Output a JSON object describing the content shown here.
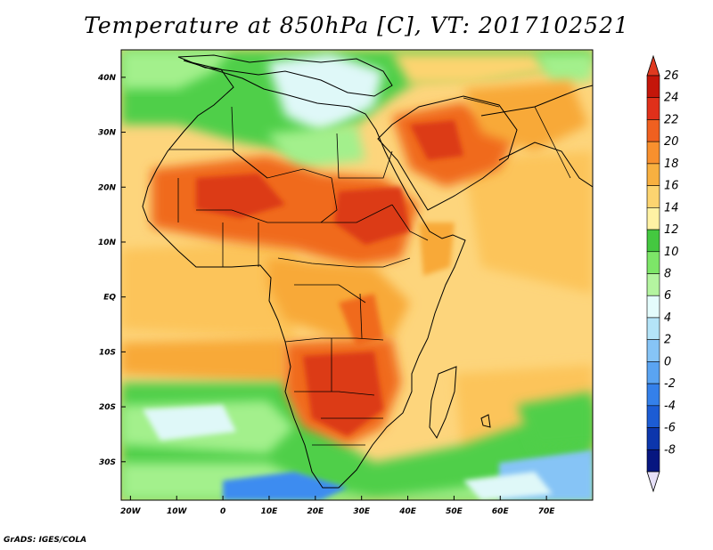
{
  "title": "Temperature at 850hPa [C], VT: 2017102521",
  "credit": "GrADS: IGES/COLA",
  "map": {
    "lon_range": [
      -22,
      80
    ],
    "lat_range": [
      -37,
      45
    ],
    "lon_ticks": [
      {
        "value": -20,
        "label": "20W"
      },
      {
        "value": -10,
        "label": "10W"
      },
      {
        "value": 0,
        "label": "0"
      },
      {
        "value": 10,
        "label": "10E"
      },
      {
        "value": 20,
        "label": "20E"
      },
      {
        "value": 30,
        "label": "30E"
      },
      {
        "value": 40,
        "label": "40E"
      },
      {
        "value": 50,
        "label": "50E"
      },
      {
        "value": 60,
        "label": "60E"
      },
      {
        "value": 70,
        "label": "70E"
      }
    ],
    "lat_ticks": [
      {
        "value": 40,
        "label": "40N"
      },
      {
        "value": 30,
        "label": "30N"
      },
      {
        "value": 20,
        "label": "20N"
      },
      {
        "value": 10,
        "label": "10N"
      },
      {
        "value": 0,
        "label": "EQ"
      },
      {
        "value": -10,
        "label": "10S"
      },
      {
        "value": -20,
        "label": "20S"
      },
      {
        "value": -30,
        "label": "30S"
      }
    ],
    "colors": {
      "ocean_mid": "#fdd57c",
      "ocean_warm": "#f8a937",
      "land_hot": "#f06a1d",
      "land_very_hot": "#dc3a13",
      "cool_green": "#4fcf4a",
      "pale_green": "#a3f08c",
      "pale_blue": "#dff8f8",
      "blue": "#3d8cf0"
    }
  },
  "colorbar": {
    "levels": [
      "26",
      "24",
      "22",
      "20",
      "18",
      "16",
      "14",
      "12",
      "10",
      "8",
      "6",
      "4",
      "2",
      "0",
      "-2",
      "-4",
      "-6",
      "-8"
    ],
    "colors": [
      "#c4160a",
      "#e0301a",
      "#f06020",
      "#f8902e",
      "#f8b040",
      "#fcd470",
      "#fff2a4",
      "#44c840",
      "#7de668",
      "#b4f4a0",
      "#e4fcfc",
      "#b4e4f8",
      "#86c4f6",
      "#5aa4f2",
      "#3480ea",
      "#1c5cd4",
      "#0c36ac",
      "#061680"
    ],
    "top_color": "#e03a20",
    "bottom_color": "#e6e0f8"
  }
}
